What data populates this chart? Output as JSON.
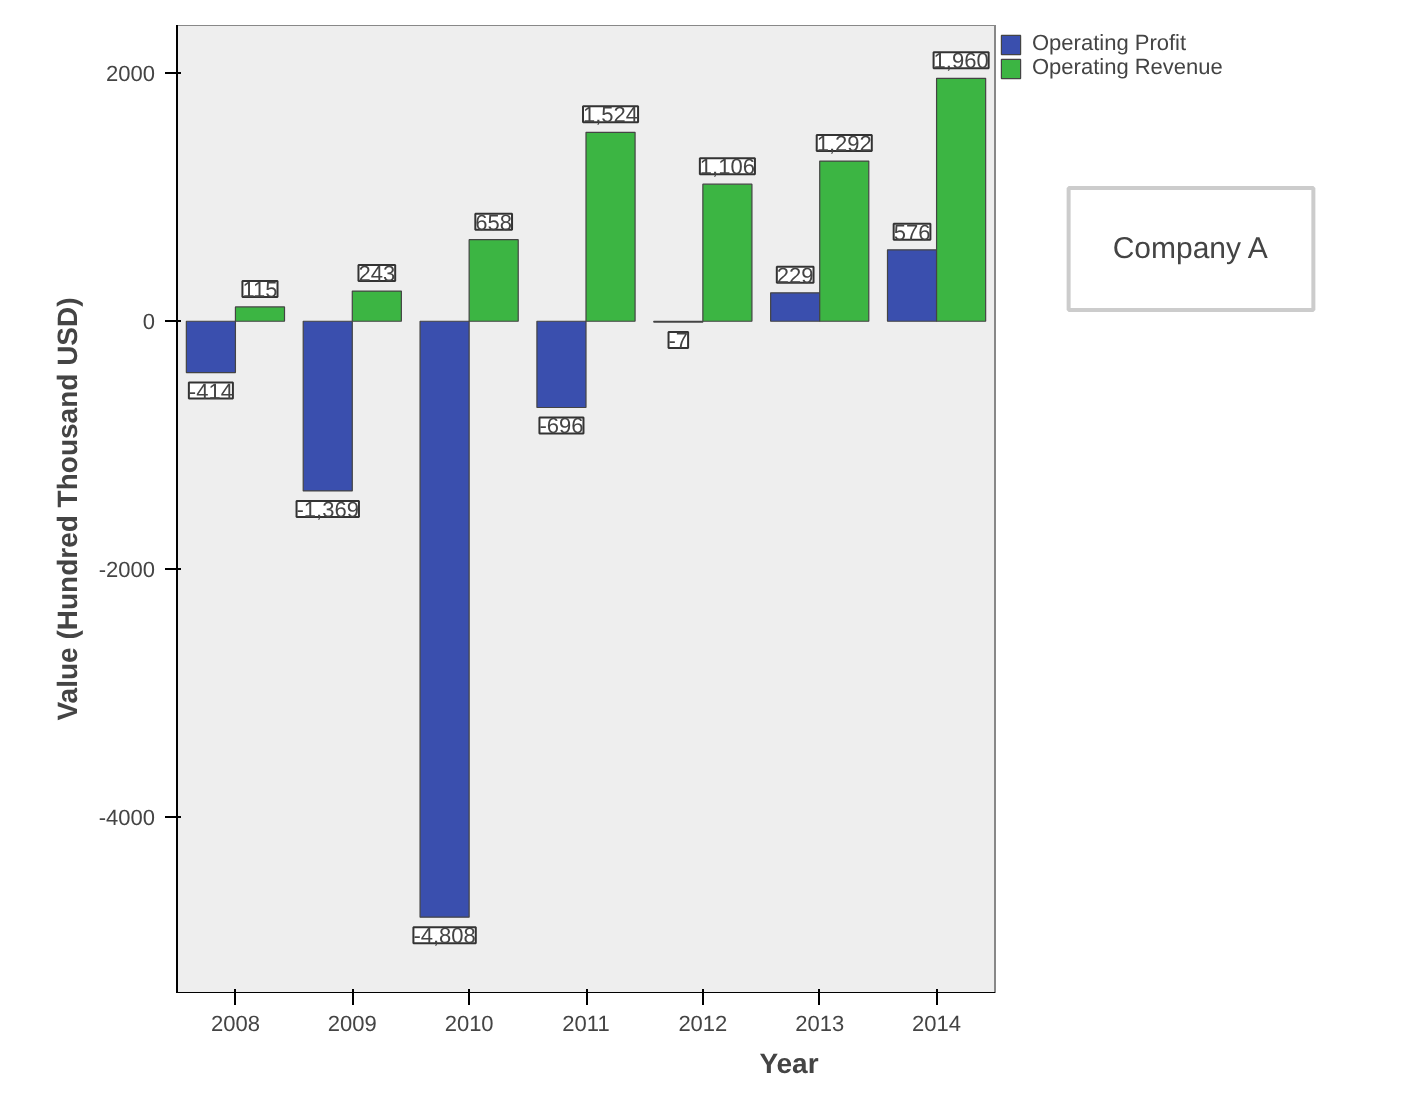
{
  "chart_data": {
    "type": "bar",
    "xlabel": "Year",
    "ylabel": "Value (Hundred Thousand USD)",
    "categories": [
      "2008",
      "2009",
      "2010",
      "2011",
      "2012",
      "2013",
      "2014"
    ],
    "series": [
      {
        "name": "Operating Profit",
        "color": "#3a4fae",
        "values": [
          -414,
          -1369,
          -4808,
          -696,
          -7,
          229,
          576
        ],
        "value_labels": [
          "-414",
          "-1,369",
          "-4,808",
          "-696",
          "-7",
          "229",
          "576"
        ]
      },
      {
        "name": "Operating Revenue",
        "color": "#3cb543",
        "values": [
          115,
          243,
          658,
          1524,
          1106,
          1292,
          1960
        ],
        "value_labels": [
          "115",
          "243",
          "658",
          "1,524",
          "1,106",
          "1,292",
          "1,960"
        ]
      }
    ],
    "ylim": [
      -5420,
      2390
    ],
    "yticks": [
      -4000,
      -2000,
      0,
      2000
    ],
    "grid": false,
    "legend": "top right",
    "annotations": [
      "Company A"
    ]
  }
}
